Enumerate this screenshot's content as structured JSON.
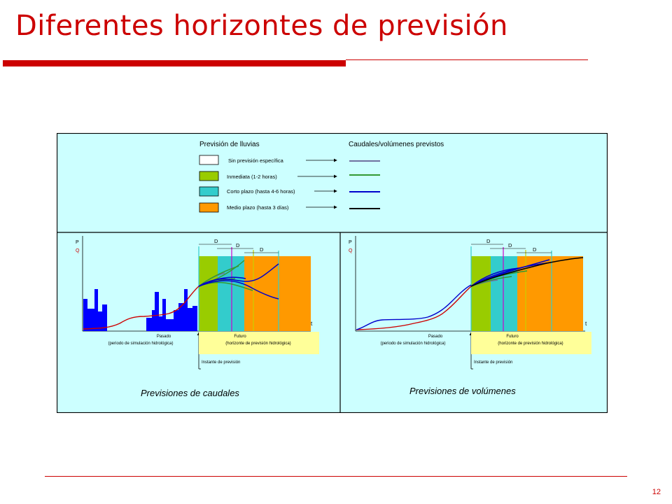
{
  "slide": {
    "title": "Diferentes horizontes de previsión",
    "page_number": "12"
  },
  "legend": {
    "rain_header": "Previsión de lluvias",
    "flow_header": "Caudales/volúmenes previstos",
    "items": [
      {
        "label": "Sin previsión específica",
        "fill": "#ffffff",
        "line": "#7070a0"
      },
      {
        "label": "Inmediata (1-2 horas)",
        "fill": "#99cc00",
        "line": "#339933"
      },
      {
        "label": "Corto plazo (hasta 4-6 horas)",
        "fill": "#33cccc",
        "line": "#0000cc"
      },
      {
        "label": "Medio plazo (hasta 3 días)",
        "fill": "#ff9900",
        "line": "#000000"
      }
    ]
  },
  "panels": {
    "left": {
      "caption": "Previsiones de caudales",
      "axis_p": "P",
      "axis_q": "Q",
      "axis_t": "t",
      "d1": "D",
      "d2": "D",
      "d3": "D",
      "past_line1": "Pasado",
      "past_line2": "(periodo de simulación hidrológica)",
      "future_line1": "Futuro",
      "future_line2": "(horizonte de previsión hidrológica)",
      "instant": "Instante de previsión"
    },
    "right": {
      "caption": "Previsiones de volúmenes",
      "axis_p": "P",
      "axis_q": "Q",
      "axis_t": "t",
      "d1": "D",
      "d2": "D",
      "d3": "D",
      "past_line1": "Pasado",
      "past_line2": "(periodo de simulación hidrológica)",
      "future_line1": "Futuro",
      "future_line2": "(horizonte de previsión hidrológica)",
      "instant": "Instante de previsión"
    }
  },
  "colors": {
    "title": "#cc0000",
    "figure_bg": "#ccffff",
    "past_hist": "#0000ff",
    "observed": "#cc0000",
    "future_box": "#ffff99",
    "marker_magenta": "#cc00cc",
    "marker_yellow": "#cccc00",
    "marker_cyan": "#33cccc"
  }
}
